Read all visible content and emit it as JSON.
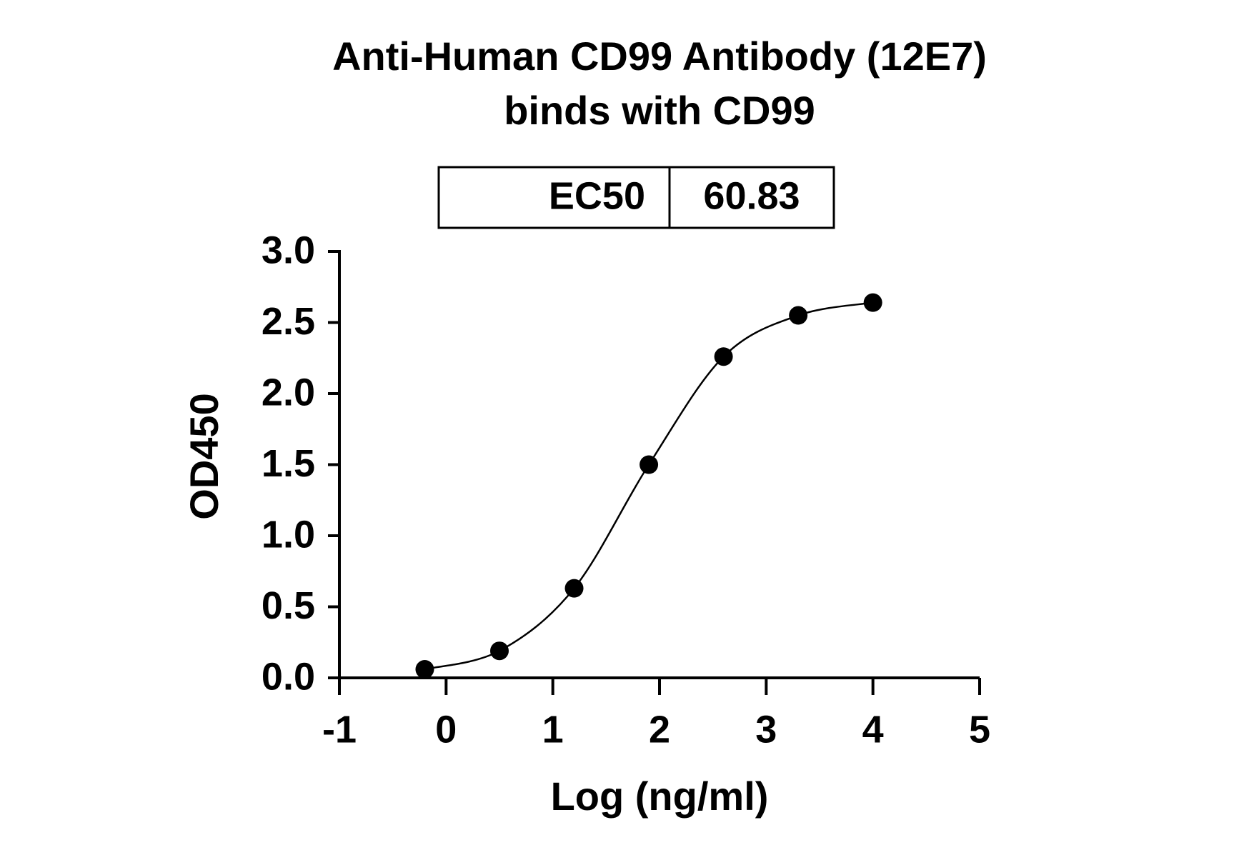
{
  "chart_data": {
    "type": "scatter",
    "title": [
      "Anti-Human CD99 Antibody (12E7)",
      "binds with CD99"
    ],
    "ec50_table": {
      "label": "EC50",
      "value": 60.83
    },
    "x_label": "Log (ng/ml)",
    "y_label": "OD450",
    "series": [
      {
        "name": "CD99",
        "color": "#000000",
        "x": [
          -0.2,
          0.5,
          1.2,
          1.9,
          2.6,
          3.3,
          4.0
        ],
        "values": [
          0.06,
          0.19,
          0.63,
          1.5,
          2.26,
          2.55,
          2.64
        ]
      }
    ],
    "xlim": [
      -1,
      5
    ],
    "xticks": [
      -1,
      0,
      1,
      2,
      3,
      4,
      5
    ],
    "ylim": [
      0,
      3
    ],
    "yticks": [
      {
        "value": 0,
        "label": "0.0"
      },
      {
        "value": 0.5,
        "label": "0.5"
      },
      {
        "value": 1,
        "label": "1.0"
      },
      {
        "value": 1.5,
        "label": "1.5"
      },
      {
        "value": 2,
        "label": "2.0"
      },
      {
        "value": 2.5,
        "label": "2.5"
      },
      {
        "value": 3,
        "label": "3.0"
      }
    ],
    "grid": false
  }
}
